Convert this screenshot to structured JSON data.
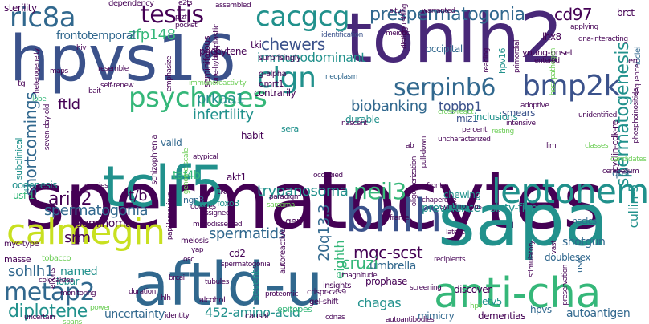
{
  "palette": {
    "dark_purple": "#440154",
    "indigo": "#3b528b",
    "blue": "#31688e",
    "teal": "#21918c",
    "green": "#35b779",
    "lime": "#6ece58",
    "yellow": "#c8e020",
    "bright_yellow": "#fde725",
    "navy": "#482878"
  },
  "words": [
    "spermatocytes",
    "tohlh2",
    "hpvs16",
    "sapa",
    "aftld-u",
    "tclf5",
    "bhlh",
    "leptonema",
    "anti-cha",
    "calmegin",
    "ric8a",
    "cacgcg",
    "psychoses",
    "testis",
    "clgn",
    "bmp2k",
    "serpinb6",
    "neil3",
    "metap2",
    "diplotene",
    "prespermatogonia",
    "spermatogenesis",
    "cd97",
    "zfp148",
    "frontotemporal",
    "chewers",
    "immunodominant",
    "biobanking",
    "topbp1",
    "prkaa1",
    "ftld",
    "infertility",
    "shortcomings",
    "taf4b",
    "trypanosoma",
    "arih2",
    "spermatogonia",
    "t/b",
    "srm",
    "sohlh1",
    "seminoma",
    "spermatids",
    "mgc-scst",
    "cruzi",
    "umbrella",
    "chagas",
    "452-amino-acid",
    "uncertainty",
    "prevalence",
    "sixty-five",
    "cullin-5",
    "doublesex",
    "shotgun",
    "hpvs",
    "dementias",
    "autoantigen",
    "mimicry",
    "20q13.3",
    "eighth",
    "named",
    "lobar",
    "occipital",
    "tki",
    "tkis",
    "lhx8",
    "pachytene",
    "contrarily",
    "durable",
    "miz1",
    "smears",
    "qter",
    "brct",
    "nuclei",
    "en",
    "hpv16",
    "inclusions",
    "chewing",
    "usf-1",
    "oogenesis",
    "subclinical",
    "cd2",
    "discover",
    "prophase",
    "seventh",
    "etv5",
    "user",
    "nsclcs",
    "germ",
    "akt1",
    "ngn3",
    "foxo3",
    "valid",
    "habit",
    "sera",
    "seminiferous",
    "dysplastic",
    "surprisingly",
    "dmrt1",
    "g-alpha",
    "neoplasm",
    "identification",
    "meiotic",
    "situ",
    "warranted",
    "sterility",
    "dependency",
    "e2fs",
    "plzf",
    "pocket",
    "assembled",
    "hiv",
    "resemble",
    "bait",
    "self-renew",
    "maps",
    "emphasize",
    "one-hybrid",
    "tg",
    "lobe",
    "heterogeneity",
    "seven-day-old",
    "schizophrenia",
    "genome-scale",
    "atypical",
    "ovaries",
    "papillomavirus",
    "myc-type",
    "masse",
    "tobacco",
    "efforts",
    "colocalizes",
    "monitoring",
    "uncertain",
    "power",
    "spans",
    "meiosis",
    "tubules",
    "brcai",
    "hlh",
    "alcohol",
    "identity",
    "proteomic",
    "causal",
    "epitopes",
    "crispr-cas9",
    "gel-shift",
    "cdnas",
    "autoantibodies",
    "autoreactive",
    "screening",
    "oligomerization",
    "pull-down",
    "prefrontal",
    "synchronous",
    "chaperone",
    "latent",
    "frame",
    "recipients",
    "magnitude",
    "insights",
    "sarcoma",
    "oocytes",
    "paradigm",
    "assigned",
    "microdissected",
    "yap",
    "osc",
    "spermatogonial",
    "young-onset",
    "primordial",
    "applying",
    "dna-interacting",
    "host-pathogen",
    "distinguishing",
    "reading",
    "sequence",
    "cross-react",
    "adoptive",
    "unidentified",
    "phosphoinositide",
    "cyclin-cdk-re",
    "resting",
    "lim",
    "classes",
    "candidates",
    "cerebellum",
    "intensive",
    "percent",
    "ab",
    "uncharacterized",
    "nascent",
    "immunoreactivity",
    "occupied",
    "duration",
    "hpv",
    "stimulatory",
    "vast",
    "preservation",
    "entered"
  ]
}
